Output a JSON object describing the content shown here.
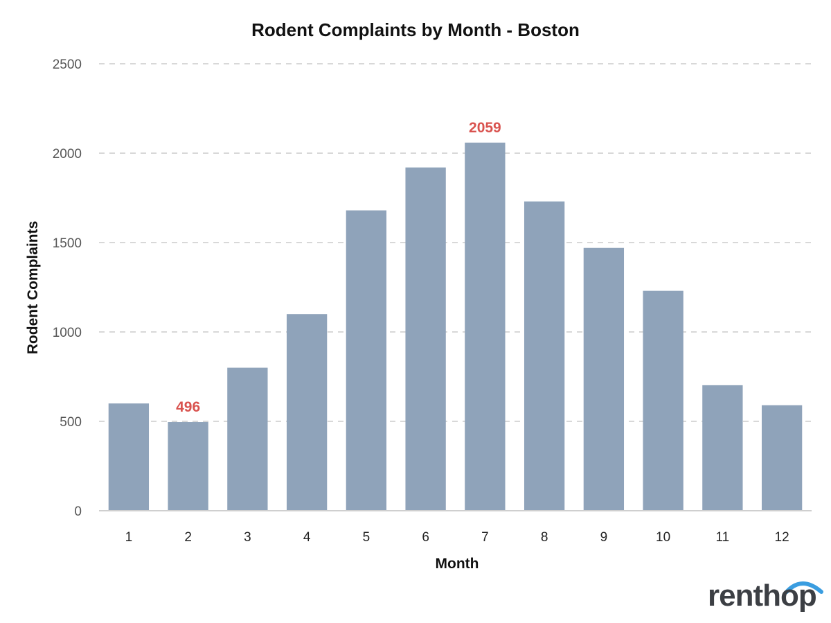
{
  "chart_data": {
    "type": "bar",
    "title": "Rodent Complaints by Month - Boston",
    "xlabel": "Month",
    "ylabel": "Rodent Complaints",
    "categories": [
      "1",
      "2",
      "3",
      "4",
      "5",
      "6",
      "7",
      "8",
      "9",
      "10",
      "11",
      "12"
    ],
    "values": [
      600,
      496,
      800,
      1100,
      1680,
      1920,
      2059,
      1730,
      1470,
      1230,
      702,
      590
    ],
    "ylim": [
      0,
      2500
    ],
    "yticks": [
      0,
      500,
      1000,
      1500,
      2000,
      2500
    ],
    "grid": true,
    "bar_color": "#8fa3ba",
    "highlight_color": "#d9534f",
    "data_labels": [
      {
        "category": "2",
        "text": "496"
      },
      {
        "category": "7",
        "text": "2059"
      }
    ]
  },
  "branding": {
    "logo_text": "renthop",
    "logo_text_color": "#3c3f44",
    "logo_accent_color": "#3a9de0"
  }
}
